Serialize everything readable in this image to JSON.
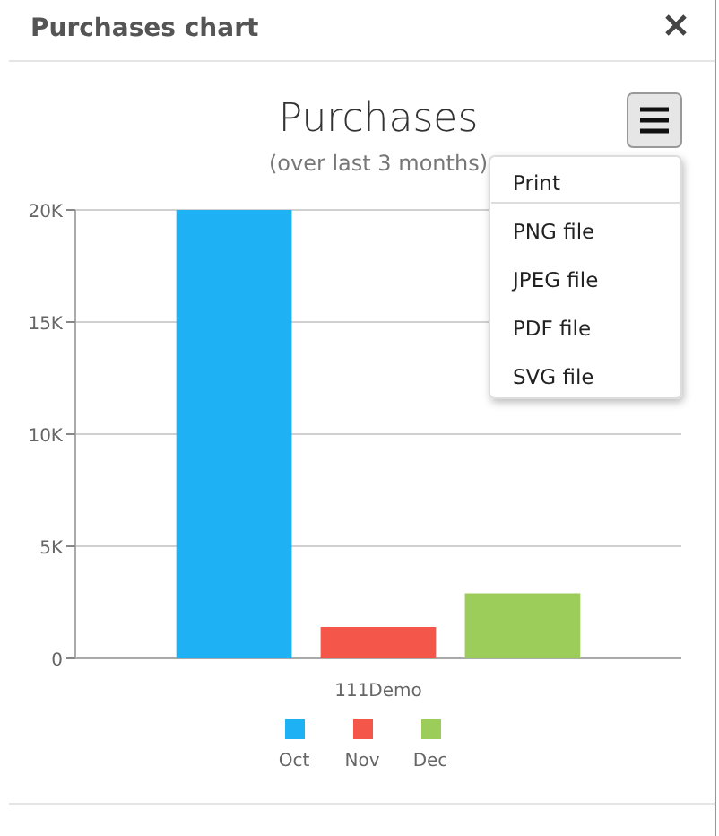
{
  "chart_data": {
    "type": "bar",
    "title": "Purchases",
    "subtitle": "(over last 3 months)",
    "annotations": [
      "Purchases chart",
      "Print",
      "PNG file",
      "JPEG file",
      "PDF file",
      "SVG file"
    ],
    "categories": [
      "111Demo"
    ],
    "series": [
      {
        "name": "Oct",
        "color": "#1eb1f4",
        "values": [
          20000
        ]
      },
      {
        "name": "Nov",
        "color": "#f5564a",
        "values": [
          1400
        ]
      },
      {
        "name": "Dec",
        "color": "#9ccc5a",
        "values": [
          2900
        ]
      }
    ],
    "ylim": [
      0,
      20000
    ],
    "yticks": [
      {
        "value": 0,
        "label": "0"
      },
      {
        "value": 5000,
        "label": "5K"
      },
      {
        "value": 10000,
        "label": "10K"
      },
      {
        "value": 15000,
        "label": "15K"
      },
      {
        "value": 20000,
        "label": "20K"
      }
    ],
    "grid": "y",
    "legend": "bottom"
  }
}
